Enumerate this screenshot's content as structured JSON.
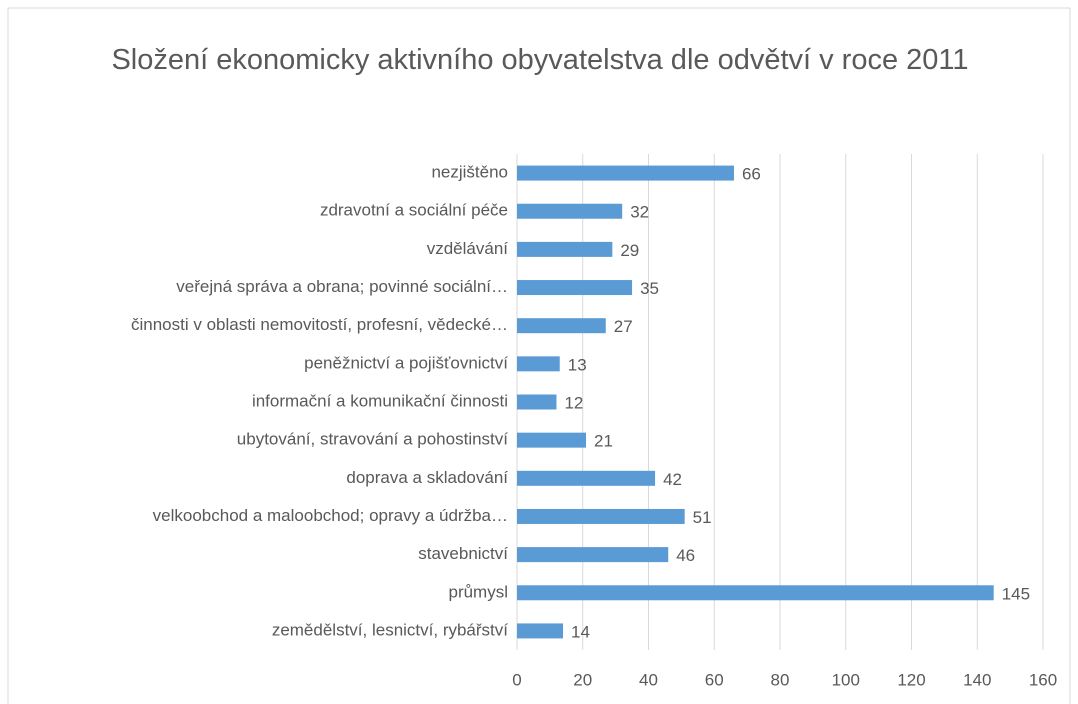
{
  "chart_data": {
    "type": "bar",
    "orientation": "horizontal",
    "title": "Složení ekonomicky aktivního obyvatelstva dle odvětví v roce 2011",
    "categories": [
      "nezjištěno",
      "zdravotní a sociální péče",
      "vzdělávání",
      "veřejná správa a obrana; povinné sociální…",
      "činnosti v oblasti nemovitostí, profesní, vědecké…",
      "peněžnictví a pojišťovnictví",
      "informační a komunikační činnosti",
      "ubytování, stravování a pohostinství",
      "doprava a skladování",
      "velkoobchod a maloobchod; opravy a údržba…",
      "stavebnictví",
      "průmysl",
      "zemědělství, lesnictví, rybářství"
    ],
    "values": [
      66,
      32,
      29,
      35,
      27,
      13,
      12,
      21,
      42,
      51,
      46,
      145,
      14
    ],
    "color": "#5b9bd5",
    "xlim": [
      0,
      160
    ],
    "xticks": [
      0,
      20,
      40,
      60,
      80,
      100,
      120,
      140,
      160
    ],
    "grid": true
  }
}
